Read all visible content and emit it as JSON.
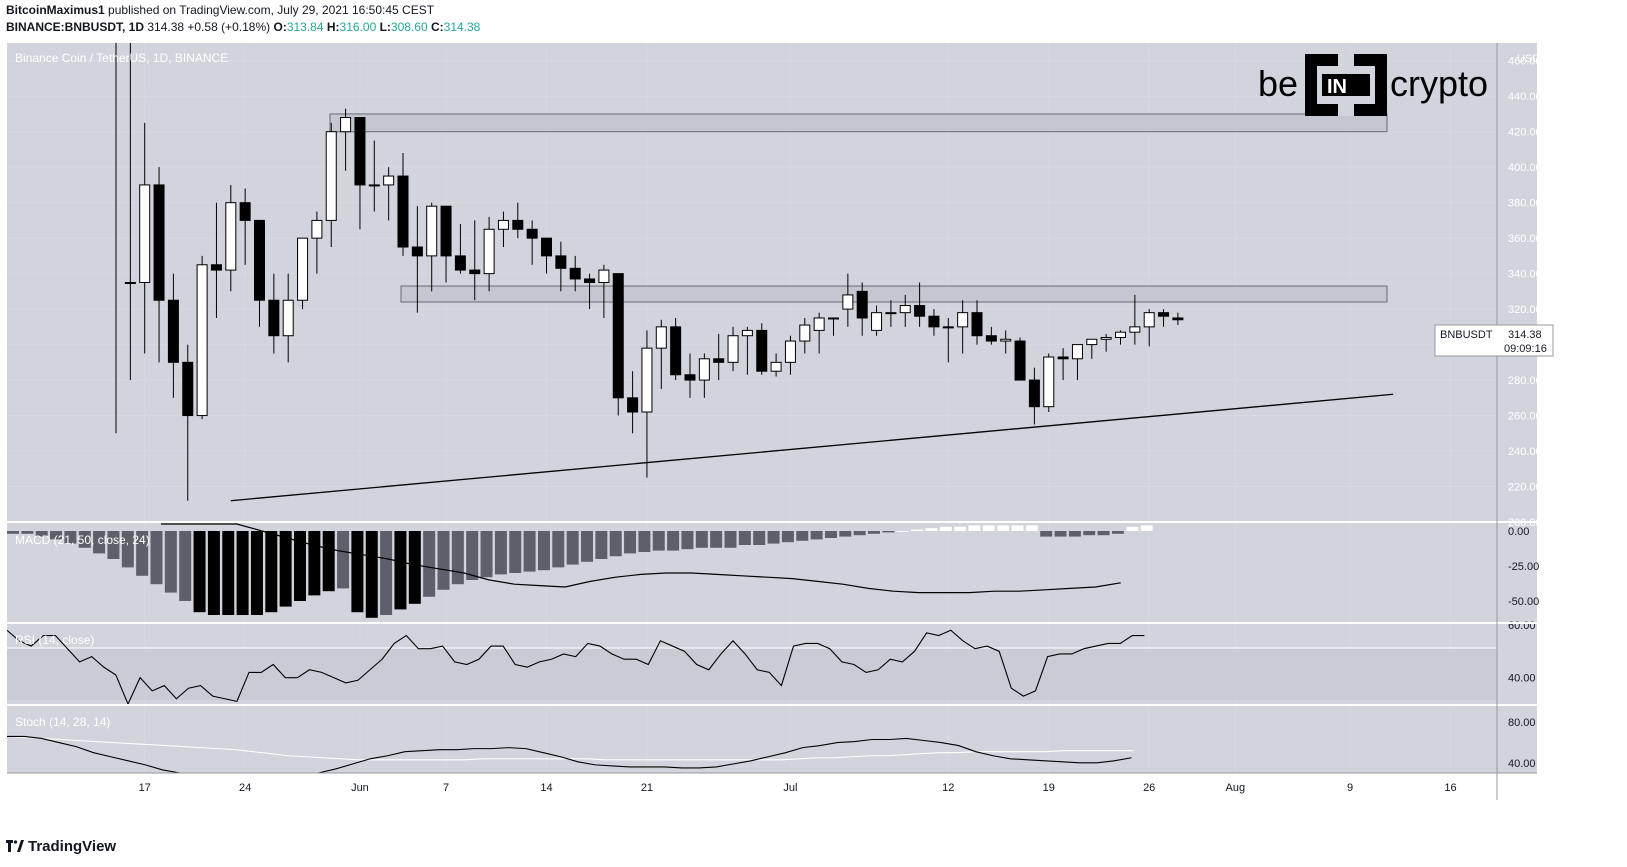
{
  "header": {
    "author": "BitcoinMaximus1",
    "published": "published on TradingView.com, July 29, 2021 16:50:45 CEST",
    "symbol": "BINANCE:BNBUSDT, 1D",
    "last": "314.38",
    "change": "+0.58 (+0.18%)",
    "o_label": "O:",
    "o_value": "313.84",
    "h_label": "H:",
    "h_value": "316.00",
    "l_label": "L:",
    "l_value": "308.60",
    "c_label": "C:",
    "c_value": "314.38"
  },
  "chart_title": "Binance Coin / TetherUS, 1D, BINANCE",
  "brand": {
    "left": "be",
    "mid": "IN",
    "right": "crypto"
  },
  "price_label": {
    "symbol": "BNBUSDT",
    "value": "314.38",
    "countdown": "09:09:16"
  },
  "currency": "USDT",
  "footer": {
    "brand": "TradingView"
  },
  "colors": {
    "bg": "#d1d4dc",
    "up": "#ffffff",
    "down": "#000000",
    "grid": "#ffffff",
    "text": "#131722"
  },
  "chart_data": {
    "type": "candlestick",
    "title": "Binance Coin / TetherUS, 1D, BINANCE",
    "ylim": [
      200,
      470
    ],
    "y_ticks": [
      200,
      220,
      240,
      260,
      280,
      300,
      320,
      340,
      360,
      380,
      400,
      420,
      440,
      460
    ],
    "x_ticks": [
      "17",
      "24",
      "Jun",
      "7",
      "14",
      "21",
      "Jul",
      "12",
      "19",
      "26",
      "Aug",
      "9",
      "16"
    ],
    "candles_start_date": "2021-05-15",
    "candles": [
      [
        null,
        540,
        250,
        null
      ],
      [
        335,
        540,
        280,
        335
      ],
      [
        335,
        425,
        295,
        390
      ],
      [
        390,
        400,
        290,
        325
      ],
      [
        325,
        340,
        270,
        290
      ],
      [
        290,
        300,
        212,
        260
      ],
      [
        260,
        350,
        258,
        345
      ],
      [
        345,
        380,
        315,
        342
      ],
      [
        342,
        390,
        330,
        380
      ],
      [
        380,
        388,
        345,
        370
      ],
      [
        370,
        368,
        310,
        325
      ],
      [
        325,
        340,
        295,
        305
      ],
      [
        305,
        340,
        290,
        325
      ],
      [
        325,
        360,
        320,
        360
      ],
      [
        360,
        375,
        340,
        370
      ],
      [
        370,
        425,
        355,
        420
      ],
      [
        420,
        433,
        398,
        428
      ],
      [
        428,
        425,
        365,
        390
      ],
      [
        390,
        415,
        375,
        390
      ],
      [
        390,
        400,
        370,
        395
      ],
      [
        395,
        408,
        350,
        355
      ],
      [
        355,
        378,
        318,
        350
      ],
      [
        350,
        380,
        330,
        378
      ],
      [
        378,
        375,
        335,
        350
      ],
      [
        350,
        368,
        340,
        342
      ],
      [
        342,
        370,
        325,
        340
      ],
      [
        340,
        372,
        330,
        365
      ],
      [
        365,
        375,
        355,
        370
      ],
      [
        370,
        380,
        360,
        365
      ],
      [
        365,
        370,
        345,
        360
      ],
      [
        360,
        360,
        340,
        350
      ],
      [
        350,
        358,
        330,
        343
      ],
      [
        343,
        350,
        330,
        337
      ],
      [
        337,
        340,
        320,
        335
      ],
      [
        335,
        345,
        315,
        342
      ],
      [
        340,
        340,
        260,
        270
      ],
      [
        270,
        285,
        250,
        262
      ],
      [
        262,
        308,
        225,
        298
      ],
      [
        298,
        314,
        275,
        310
      ],
      [
        310,
        315,
        280,
        283
      ],
      [
        283,
        295,
        270,
        280
      ],
      [
        280,
        295,
        270,
        292
      ],
      [
        292,
        306,
        280,
        290
      ],
      [
        290,
        310,
        285,
        305
      ],
      [
        305,
        310,
        283,
        308
      ],
      [
        308,
        312,
        283,
        285
      ],
      [
        285,
        295,
        282,
        290
      ],
      [
        290,
        305,
        283,
        302
      ],
      [
        302,
        315,
        295,
        311
      ],
      [
        308,
        318,
        295,
        315
      ],
      [
        315,
        315,
        305,
        315
      ],
      [
        320,
        340,
        310,
        328
      ],
      [
        330,
        335,
        305,
        315
      ],
      [
        308,
        322,
        305,
        318
      ],
      [
        318,
        325,
        310,
        318
      ],
      [
        318,
        328,
        310,
        322
      ],
      [
        322,
        335,
        310,
        316
      ],
      [
        316,
        320,
        305,
        310
      ],
      [
        310,
        315,
        290,
        310
      ],
      [
        310,
        325,
        295,
        318
      ],
      [
        318,
        325,
        300,
        305
      ],
      [
        305,
        310,
        300,
        302
      ],
      [
        302,
        308,
        295,
        303
      ],
      [
        302,
        304,
        283,
        280
      ],
      [
        280,
        287,
        255,
        265
      ],
      [
        265,
        295,
        262,
        293
      ],
      [
        293,
        298,
        280,
        292
      ],
      [
        292,
        300,
        280,
        300
      ],
      [
        300,
        303,
        292,
        303
      ],
      [
        303,
        306,
        296,
        304
      ],
      [
        304,
        308,
        300,
        307
      ],
      [
        307,
        328,
        300,
        310
      ],
      [
        310,
        320,
        299,
        318
      ],
      [
        318,
        320,
        310,
        316
      ],
      [
        315,
        318,
        311,
        314
      ]
    ],
    "zones": [
      {
        "from": 420,
        "to": 430
      },
      {
        "from": 324,
        "to": 333
      }
    ],
    "trendline": {
      "start": [
        "2021-05-23",
        212
      ],
      "end": [
        "2021-08-12",
        272
      ]
    },
    "macd": {
      "title": "MACD (21, 50, close, 24)",
      "ylim": [
        -65,
        5
      ],
      "y_ticks": [
        0,
        -25,
        -50
      ],
      "histogram": [
        -2,
        -2,
        -4,
        -6,
        -9,
        -12,
        -16,
        -20,
        -26,
        -32,
        -38,
        -44,
        -50,
        -58,
        -60,
        -60,
        -60,
        -60,
        -58,
        -54,
        -50,
        -46,
        -43,
        -41,
        -58,
        -62,
        -60,
        -56,
        -52,
        -47,
        -42,
        -38,
        -35,
        -33,
        -31,
        -30,
        -29,
        -28,
        -26,
        -24,
        -22,
        -20,
        -18,
        -16,
        -15,
        -14,
        -14,
        -13,
        -12,
        -12,
        -12,
        -10,
        -10,
        -9,
        -8,
        -7,
        -6,
        -5,
        -4,
        -3,
        -2,
        -1,
        0,
        1,
        2,
        3,
        3,
        4,
        4,
        4,
        4,
        4,
        -4,
        -4,
        -4,
        -3,
        -3,
        -2,
        3,
        4,
        4,
        4,
        4,
        5,
        5,
        5,
        6,
        6
      ],
      "line": [
        28,
        20,
        12,
        6,
        0,
        -5,
        -10,
        -14,
        -17,
        -20,
        -24,
        -27,
        -30,
        -35,
        -38,
        -39,
        -40,
        -36,
        -33,
        -31,
        -30,
        -30,
        -31,
        -32,
        -33,
        -34,
        -36,
        -38,
        -41,
        -43,
        -44,
        -44,
        -44,
        -43,
        -43,
        -42,
        -41,
        -40,
        -37,
        -34,
        -31,
        -29,
        -27,
        -26,
        -25,
        -24,
        -23,
        -23,
        -24,
        -25,
        -25,
        -24,
        -23,
        -21,
        -19,
        -17
      ],
      "line_start_index": 12
    },
    "rsi": {
      "title": "RSI (14, close)",
      "ylim": [
        30,
        60
      ],
      "y_ticks": [
        60,
        40
      ],
      "band": [
        30,
        70
      ],
      "values": [
        58,
        54,
        52,
        56,
        56,
        51,
        46,
        48,
        44,
        41,
        30,
        40,
        35,
        37,
        32,
        36,
        37,
        33,
        32,
        31,
        42,
        42,
        45,
        40,
        40,
        43,
        42,
        40,
        38,
        39,
        43,
        47,
        53,
        56,
        51,
        51,
        52,
        46,
        45,
        47,
        52,
        52,
        45,
        44,
        46,
        47,
        49,
        48,
        53,
        52,
        49,
        47,
        47,
        45,
        54,
        52,
        50,
        45,
        43,
        49,
        54,
        49,
        43,
        42,
        37,
        52,
        53,
        53,
        51,
        46,
        45,
        42,
        43,
        47,
        46,
        50,
        57,
        56,
        58,
        54,
        51,
        52,
        50,
        36,
        33,
        35,
        48,
        49,
        49,
        51,
        52,
        53,
        53,
        56,
        56
      ],
      "values_start_index": 0
    },
    "stoch": {
      "title": "Stoch (14, 28, 14)",
      "ylim": [
        30,
        95
      ],
      "y_ticks": [
        80,
        40
      ],
      "k": [
        66,
        66,
        64,
        60,
        56,
        50,
        46,
        42,
        38,
        33,
        28,
        26,
        24,
        22,
        20,
        18,
        20,
        24,
        30,
        34,
        39,
        44,
        47,
        51,
        52,
        53,
        53,
        54,
        54,
        55,
        54,
        50,
        46,
        41,
        38,
        37,
        36,
        36,
        36,
        35,
        35,
        36,
        39,
        42,
        46,
        50,
        55,
        57,
        60,
        61,
        63,
        63,
        64,
        62,
        60,
        57,
        51,
        47,
        44,
        43,
        42,
        41,
        40,
        40,
        42,
        45
      ],
      "d": [
        66,
        65,
        64,
        63,
        62,
        61,
        60,
        59,
        58,
        57,
        56,
        55,
        54,
        53,
        51,
        49,
        47,
        46,
        45,
        44,
        43,
        43,
        43,
        43,
        43,
        43,
        43,
        44,
        44,
        44,
        44,
        44,
        44,
        44,
        43,
        43,
        43,
        43,
        43,
        43,
        43,
        43,
        43,
        43,
        43,
        44,
        45,
        45,
        46,
        47,
        47,
        48,
        49,
        50,
        50,
        51,
        51,
        51,
        51,
        51,
        52,
        52,
        52,
        52,
        52
      ]
    }
  }
}
